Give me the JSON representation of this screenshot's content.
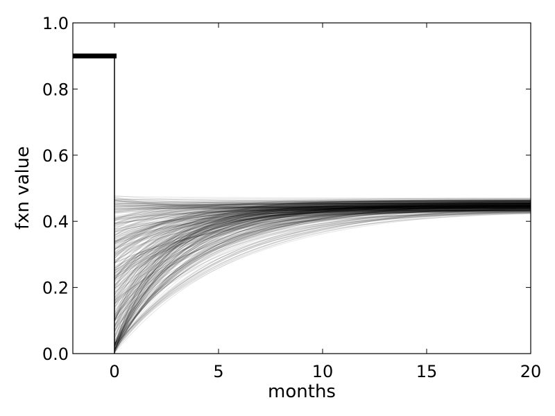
{
  "chart_data": {
    "type": "line",
    "title": "",
    "xlabel": "months",
    "ylabel": "fxn value",
    "xlim": [
      -2,
      20
    ],
    "ylim": [
      0.0,
      1.0
    ],
    "xticks": [
      0,
      5,
      10,
      15,
      20
    ],
    "xtick_labels": [
      "0",
      "5",
      "10",
      "15",
      "20"
    ],
    "yticks": [
      0.0,
      0.2,
      0.4,
      0.6,
      0.8,
      1.0
    ],
    "ytick_labels": [
      "0.0",
      "0.2",
      "0.4",
      "0.6",
      "0.8",
      "1.0"
    ],
    "grid": false,
    "legend": "none",
    "line_color": "#000000",
    "baseline": {
      "x": [
        -2,
        0
      ],
      "y": [
        0.9,
        0.9
      ]
    },
    "drop_line": {
      "x": [
        0,
        0
      ],
      "y": [
        0.9,
        0.0
      ]
    },
    "trajectory_family": {
      "form": "y = asymptote + (start - asymptote) * exp(-rate * months)",
      "count": 400,
      "months_range": [
        0,
        20
      ],
      "start_range": [
        0.0,
        0.48
      ],
      "asymptote_range": [
        0.4,
        0.48
      ],
      "rate_range": [
        0.16,
        0.45
      ],
      "opacity": 0.1
    }
  }
}
